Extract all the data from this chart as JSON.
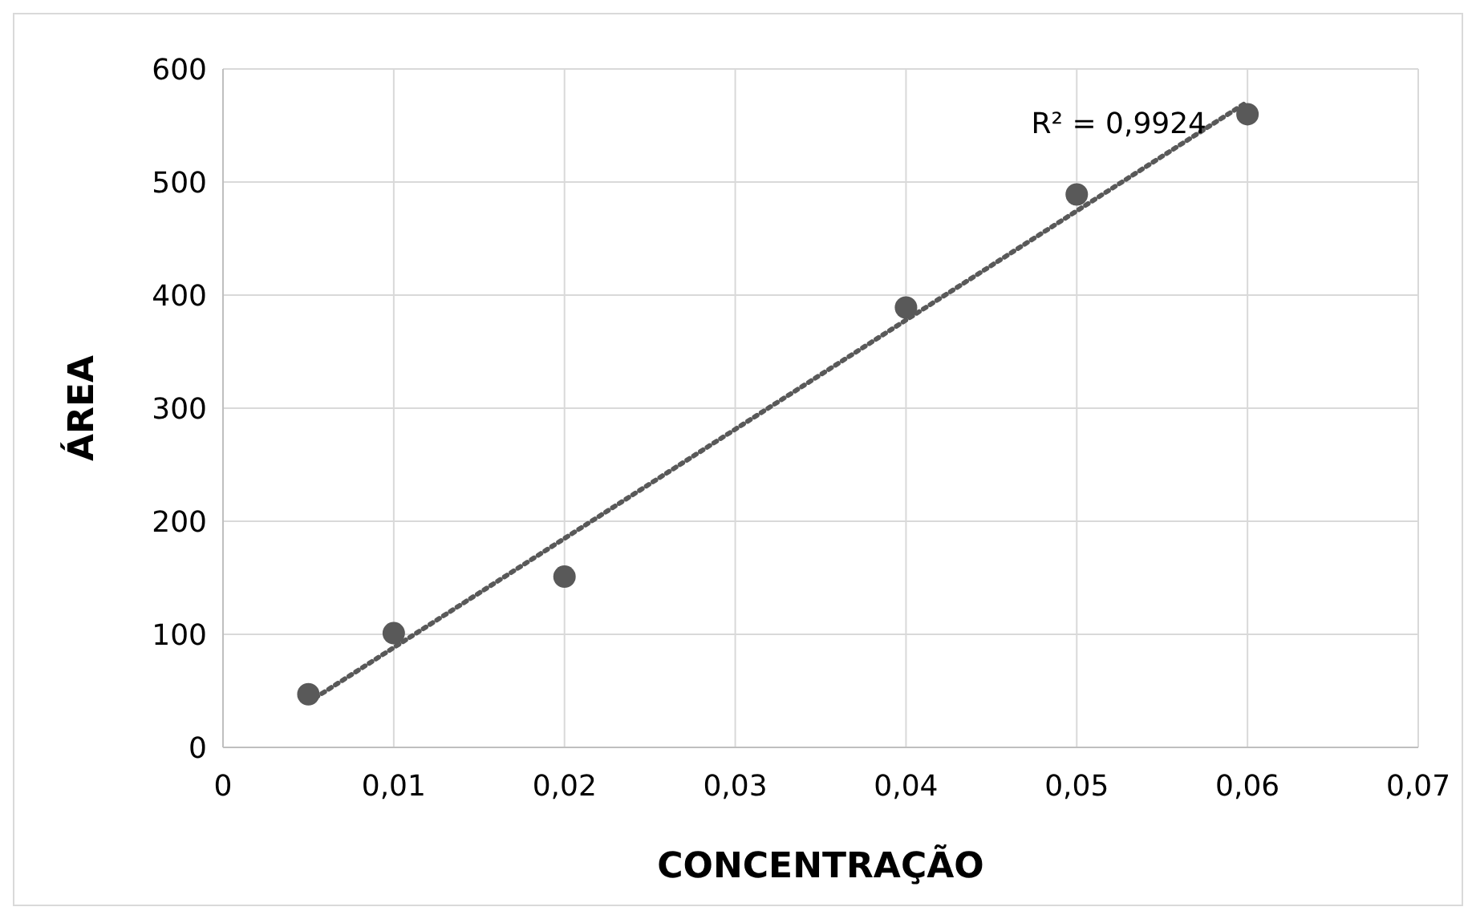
{
  "chart_data": {
    "type": "scatter",
    "xlabel": "CONCENTRAÇÃO",
    "ylabel": "ÁREA",
    "xlim": [
      0,
      0.07
    ],
    "xticks": [
      0,
      {
        "value": 0.01,
        "label": "0,01"
      },
      {
        "value": 0.02,
        "label": "0,02"
      },
      {
        "value": 0.03,
        "label": "0,03"
      },
      {
        "value": 0.04,
        "label": "0,04"
      },
      {
        "value": 0.05,
        "label": "0,05"
      },
      {
        "value": 0.06,
        "label": "0,06"
      },
      {
        "value": 0.07,
        "label": "0,07"
      }
    ],
    "ylim": [
      0,
      600
    ],
    "yticks": [
      0,
      100,
      200,
      300,
      400,
      500,
      600
    ],
    "grid": true,
    "series": [
      {
        "color": "#595959",
        "marker": "circle",
        "x": [
          0.005,
          0.01,
          0.02,
          0.04,
          0.05,
          0.06
        ],
        "values": [
          47,
          101,
          151,
          389,
          489,
          560
        ]
      },
      {
        "type": "line",
        "color": "#595959",
        "line_style": "dotted",
        "x": [
          0.005,
          0.06
        ],
        "values": [
          40,
          571
        ]
      }
    ],
    "annotations": [
      "R² = 0,9924"
    ]
  }
}
